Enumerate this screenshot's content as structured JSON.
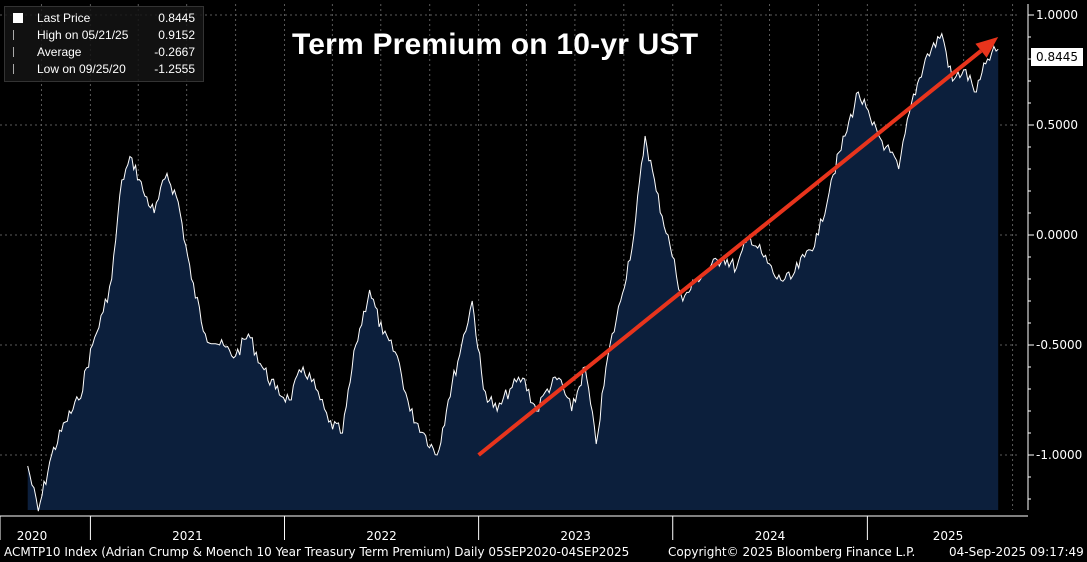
{
  "title": "Term Premium on 10-yr UST",
  "legend": {
    "rows": [
      {
        "label": "Last Price",
        "value": "0.8445"
      },
      {
        "label": "High on 05/21/25",
        "value": "0.9152"
      },
      {
        "label": "Average",
        "value": "-0.2667"
      },
      {
        "label": "Low on 09/25/20",
        "value": "-1.2555"
      }
    ]
  },
  "last_price_tag": "0.8445",
  "footer": {
    "ticker": "ACMTP10 Index (Adrian Crump & Moench 10 Year Treasury Term Premium)  Daily 05SEP2020-04SEP2025",
    "copyright": "Copyright© 2025 Bloomberg Finance L.P.",
    "timestamp": "04-Sep-2025 09:17:49"
  },
  "colors": {
    "background": "#000000",
    "area_fill": "#0c1f3c",
    "line": "#ffffff",
    "trend_arrow": "#e8341c",
    "grid": "#5a5a5a"
  },
  "chart_data": {
    "type": "area",
    "xlabel": "",
    "ylabel": "",
    "ylim": [
      -1.25,
      1.05
    ],
    "y_ticks": [
      "1.0000",
      "0.5000",
      "0.0000",
      "-0.5000",
      "-1.0000"
    ],
    "y_tick_values": [
      1.0,
      0.5,
      0.0,
      -0.5,
      -1.0
    ],
    "x_tick_labels": [
      "2020",
      "2021",
      "2022",
      "2023",
      "2024",
      "2025"
    ],
    "grid": true,
    "legend_placement": "top-left",
    "series": [
      {
        "values_date": [
          "2020-09-05",
          "2020-09-25",
          "2020-10-20",
          "2020-11-15",
          "2020-12-10",
          "2021-01-05",
          "2021-01-25",
          "2021-02-10",
          "2021-03-01",
          "2021-03-20",
          "2021-04-10",
          "2021-05-01",
          "2021-05-25",
          "2021-06-15",
          "2021-07-10",
          "2021-08-05",
          "2021-09-01",
          "2021-10-01",
          "2021-10-25",
          "2021-11-20",
          "2021-12-15",
          "2022-01-10",
          "2022-02-05",
          "2022-03-01",
          "2022-03-25",
          "2022-04-20",
          "2022-05-15",
          "2022-06-10",
          "2022-07-05",
          "2022-08-01",
          "2022-08-25",
          "2022-09-20",
          "2022-10-15",
          "2022-11-05",
          "2022-11-30",
          "2022-12-20",
          "2023-01-10",
          "2023-02-05",
          "2023-03-01",
          "2023-03-25",
          "2023-04-20",
          "2023-05-10",
          "2023-06-01",
          "2023-06-25",
          "2023-07-20",
          "2023-08-10",
          "2023-09-01",
          "2023-09-25",
          "2023-10-20",
          "2023-11-10",
          "2023-12-01",
          "2023-12-27",
          "2024-01-20",
          "2024-02-15",
          "2024-03-10",
          "2024-04-05",
          "2024-04-30",
          "2024-05-25",
          "2024-06-20",
          "2024-07-15",
          "2024-08-10",
          "2024-09-05",
          "2024-10-01",
          "2024-10-25",
          "2024-11-20",
          "2024-12-15",
          "2025-01-10",
          "2025-02-05",
          "2025-03-01",
          "2025-03-25",
          "2025-04-20",
          "2025-05-21",
          "2025-06-10",
          "2025-07-01",
          "2025-07-25",
          "2025-08-15",
          "2025-09-04"
        ],
        "values": [
          -1.05,
          -1.2555,
          -1.0,
          -0.85,
          -0.75,
          -0.5,
          -0.35,
          -0.2,
          0.25,
          0.35,
          0.2,
          0.1,
          0.28,
          0.15,
          -0.2,
          -0.45,
          -0.5,
          -0.55,
          -0.45,
          -0.6,
          -0.7,
          -0.75,
          -0.6,
          -0.7,
          -0.85,
          -0.9,
          -0.5,
          -0.25,
          -0.45,
          -0.55,
          -0.8,
          -0.9,
          -1.0,
          -0.75,
          -0.5,
          -0.3,
          -0.7,
          -0.8,
          -0.7,
          -0.65,
          -0.8,
          -0.7,
          -0.65,
          -0.8,
          -0.6,
          -0.95,
          -0.55,
          -0.3,
          0.0,
          0.45,
          0.2,
          -0.05,
          -0.3,
          -0.2,
          -0.15,
          -0.1,
          -0.15,
          0.0,
          -0.1,
          -0.2,
          -0.2,
          -0.1,
          0.0,
          0.25,
          0.45,
          0.65,
          0.5,
          0.4,
          0.3,
          0.6,
          0.8,
          0.9152,
          0.7,
          0.75,
          0.65,
          0.8,
          0.8445
        ]
      }
    ],
    "annotations": [
      {
        "type": "trend-arrow",
        "from_date": "2023-01-01",
        "from_value": -1.0,
        "to_date": "2025-09-04",
        "to_value": 0.9
      }
    ]
  }
}
